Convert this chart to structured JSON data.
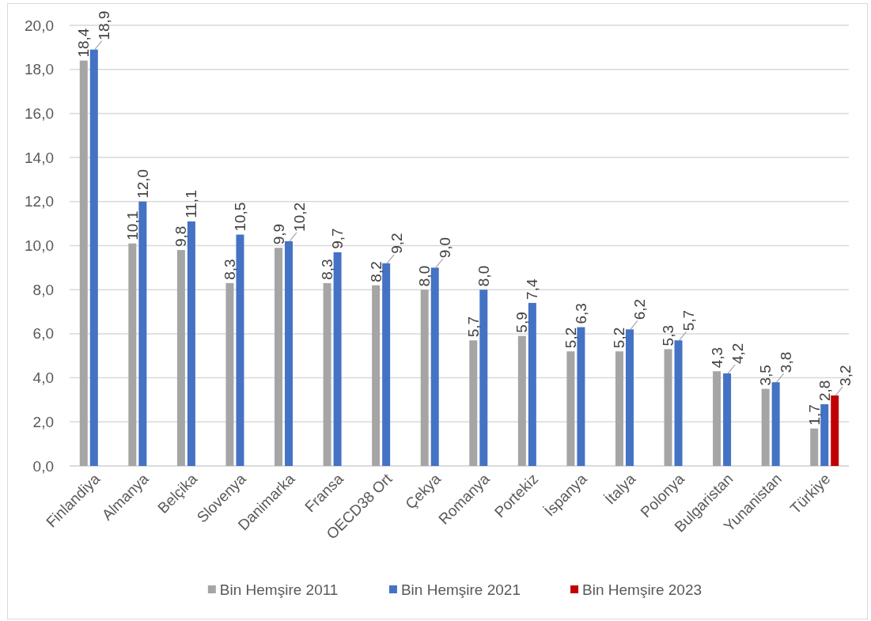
{
  "chart_data": {
    "type": "bar",
    "categories": [
      "Finlandiya",
      "Almanya",
      "Belçika",
      "Slovenya",
      "Danimarka",
      "Fransa",
      "OECD38 Ort",
      "Çekya",
      "Romanya",
      "Portekiz",
      "İspanya",
      "İtalya",
      "Polonya",
      "Bulgaristan",
      "Yunanistan",
      "Türkiye"
    ],
    "series": [
      {
        "name": "Bin Hemşire 2011",
        "color": "#a5a5a5",
        "values": [
          18.4,
          10.1,
          9.8,
          8.3,
          9.9,
          8.3,
          8.2,
          8.0,
          5.7,
          5.9,
          5.2,
          5.2,
          5.3,
          4.3,
          3.5,
          1.7
        ],
        "value_labels": [
          "18,4",
          "10,1",
          "9,8",
          "8,3",
          "9,9",
          "8,3",
          "8,2",
          "8,0",
          "5,7",
          "5,9",
          "5,2",
          "5,2",
          "5,3",
          "4,3",
          "3,5",
          "1,7"
        ]
      },
      {
        "name": "Bin Hemşire 2021",
        "color": "#4472c4",
        "values": [
          18.9,
          12.0,
          11.1,
          10.5,
          10.2,
          9.7,
          9.2,
          9.0,
          8.0,
          7.4,
          6.3,
          6.2,
          5.7,
          4.2,
          3.8,
          2.8
        ],
        "value_labels": [
          "18,9",
          "12,0",
          "11,1",
          "10,5",
          "10,2",
          "9,7",
          "9,2",
          "9,0",
          "8,0",
          "7,4",
          "6,3",
          "6,2",
          "5,7",
          "4,2",
          "3,8",
          "2,8"
        ]
      },
      {
        "name": "Bin Hemşire 2023",
        "color": "#c00000",
        "values": [
          null,
          null,
          null,
          null,
          null,
          null,
          null,
          null,
          null,
          null,
          null,
          null,
          null,
          null,
          null,
          3.2
        ],
        "value_labels": [
          null,
          null,
          null,
          null,
          null,
          null,
          null,
          null,
          null,
          null,
          null,
          null,
          null,
          null,
          null,
          "3,2"
        ]
      }
    ],
    "ylim": [
      0,
      20
    ],
    "yticks": [
      {
        "value": 0,
        "label": "0,0"
      },
      {
        "value": 2,
        "label": "2,0"
      },
      {
        "value": 4,
        "label": "4,0"
      },
      {
        "value": 6,
        "label": "6,0"
      },
      {
        "value": 8,
        "label": "8,0"
      },
      {
        "value": 10,
        "label": "10,0"
      },
      {
        "value": 12,
        "label": "12,0"
      },
      {
        "value": 14,
        "label": "14,0"
      },
      {
        "value": 16,
        "label": "16,0"
      },
      {
        "value": 18,
        "label": "18,0"
      },
      {
        "value": 20,
        "label": "20,0"
      }
    ],
    "grid": "y",
    "legend": "bottom"
  }
}
